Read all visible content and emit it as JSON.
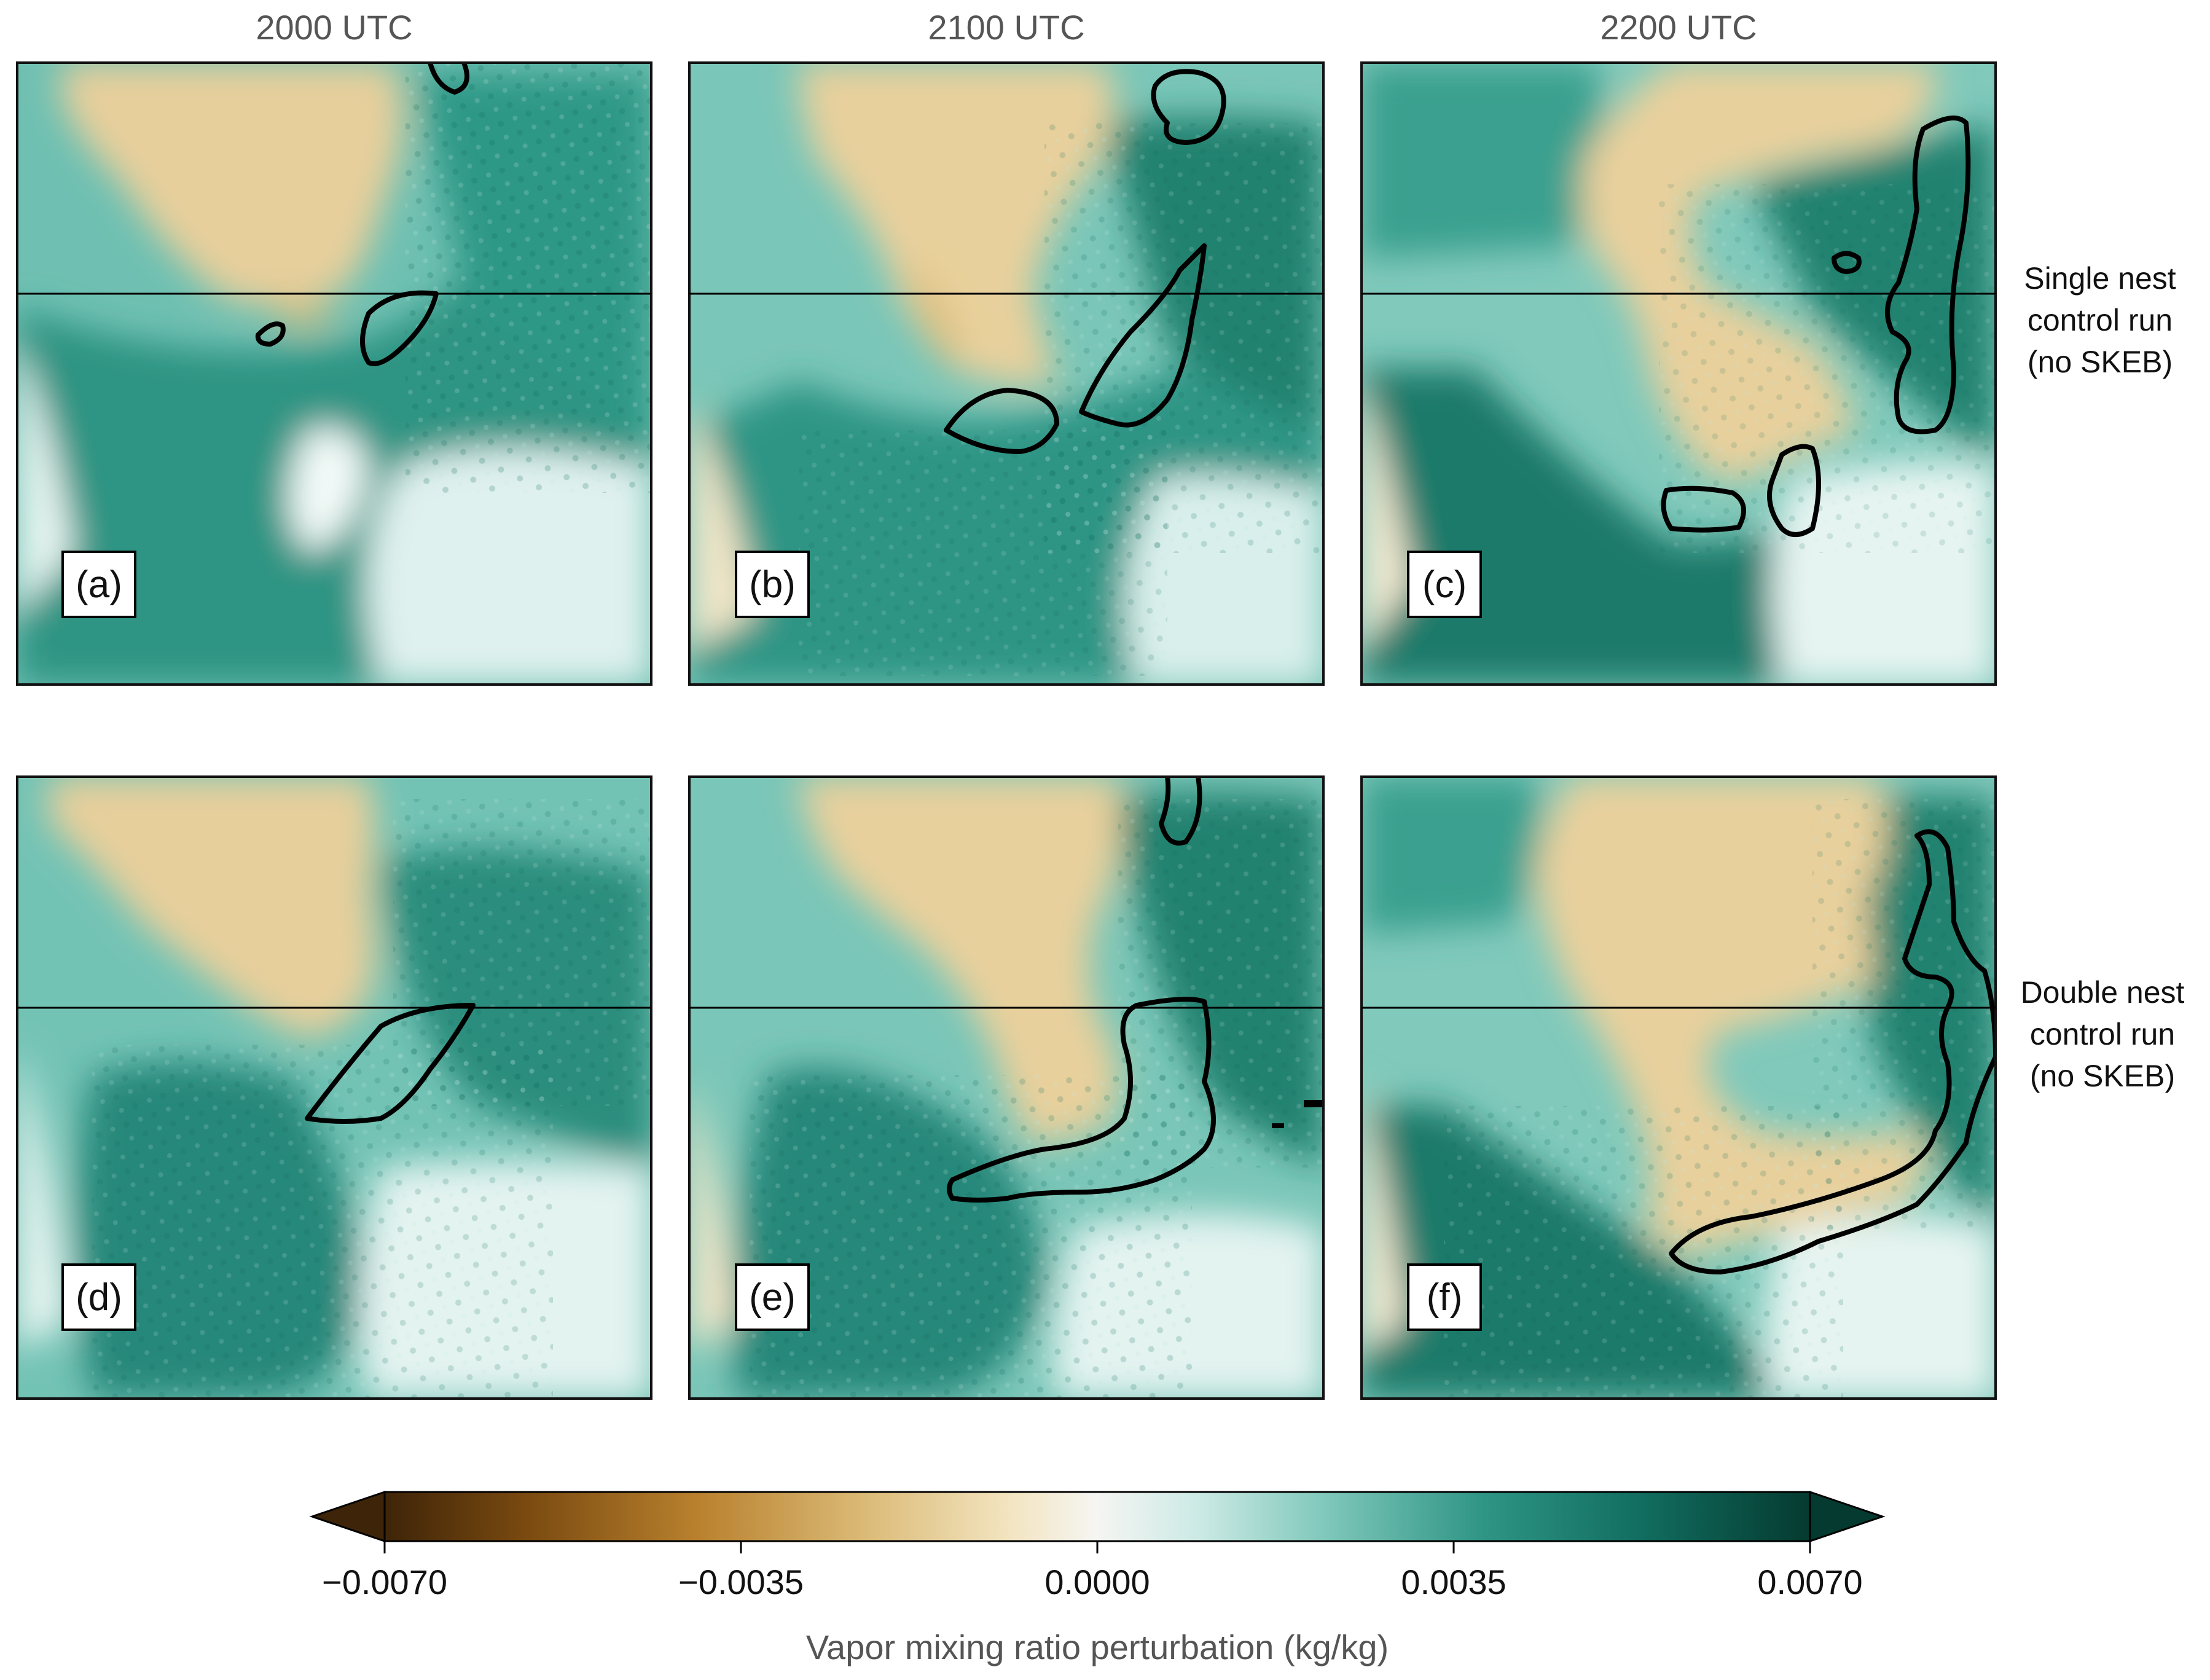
{
  "column_titles": [
    "2000 UTC",
    "2100 UTC",
    "2200 UTC"
  ],
  "row_labels": [
    [
      "Single nest",
      "control run",
      "(no SKEB)"
    ],
    [
      "Double nest",
      "control run",
      "(no SKEB)"
    ]
  ],
  "panel_labels": [
    "(a)",
    "(b)",
    "(c)",
    "(d)",
    "(e)",
    "(f)"
  ],
  "colorbar": {
    "label": "Vapor mixing ratio perturbation (kg/kg)",
    "ticks": [
      "−0.0070",
      "−0.0035",
      "0.0000",
      "0.0035",
      "0.0070"
    ],
    "colormap": [
      "#3e2408",
      "#7a4a10",
      "#b9812e",
      "#dcbc79",
      "#f3e5c2",
      "#f5f5f2",
      "#cdeae5",
      "#7fc8bb",
      "#2f9585",
      "#116e60",
      "#053a30"
    ],
    "extend": "both"
  },
  "chart_data": {
    "type": "heatmap",
    "rows": 2,
    "cols": 3,
    "variable": "Vapor mixing ratio perturbation",
    "units": "kg/kg",
    "value_range": [
      -0.007,
      0.007
    ],
    "tick_values": [
      -0.007,
      -0.0035,
      0.0,
      0.0035,
      0.007
    ],
    "panels": [
      {
        "label": "(a)",
        "time": "2000 UTC",
        "run": "Single nest control run (no SKEB)"
      },
      {
        "label": "(b)",
        "time": "2100 UTC",
        "run": "Single nest control run (no SKEB)"
      },
      {
        "label": "(c)",
        "time": "2200 UTC",
        "run": "Single nest control run (no SKEB)"
      },
      {
        "label": "(d)",
        "time": "2000 UTC",
        "run": "Double nest control run (no SKEB)"
      },
      {
        "label": "(e)",
        "time": "2100 UTC",
        "run": "Double nest control run (no SKEB)"
      },
      {
        "label": "(f)",
        "time": "2200 UTC",
        "run": "Double nest control run (no SKEB)"
      }
    ]
  }
}
